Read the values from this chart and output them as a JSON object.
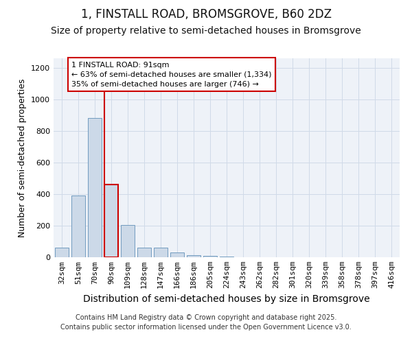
{
  "title1": "1, FINSTALL ROAD, BROMSGROVE, B60 2DZ",
  "title2": "Size of property relative to semi-detached houses in Bromsgrove",
  "xlabel": "Distribution of semi-detached houses by size in Bromsgrove",
  "ylabel": "Number of semi-detached properties",
  "categories": [
    "32sqm",
    "51sqm",
    "70sqm",
    "90sqm",
    "109sqm",
    "128sqm",
    "147sqm",
    "166sqm",
    "186sqm",
    "205sqm",
    "224sqm",
    "243sqm",
    "262sqm",
    "282sqm",
    "301sqm",
    "320sqm",
    "339sqm",
    "358sqm",
    "378sqm",
    "397sqm",
    "416sqm"
  ],
  "values": [
    60,
    390,
    880,
    460,
    205,
    62,
    62,
    30,
    15,
    8,
    3,
    1,
    0,
    0,
    0,
    0,
    0,
    0,
    0,
    0,
    0
  ],
  "bar_color": "#ccd9e8",
  "bar_edge_color": "#6090b8",
  "highlight_index": 3,
  "highlight_color": "#cc0000",
  "annotation_line1": "1 FINSTALL ROAD: 91sqm",
  "annotation_line2": "← 63% of semi-detached houses are smaller (1,334)",
  "annotation_line3": "35% of semi-detached houses are larger (746) →",
  "annotation_box_color": "#ffffff",
  "annotation_box_edge": "#cc0000",
  "ylim": [
    0,
    1260
  ],
  "yticks": [
    0,
    200,
    400,
    600,
    800,
    1000,
    1200
  ],
  "grid_color": "#d0dae8",
  "background_color": "#ffffff",
  "plot_bg_color": "#eef2f8",
  "footer_text": "Contains HM Land Registry data © Crown copyright and database right 2025.\nContains public sector information licensed under the Open Government Licence v3.0.",
  "title1_fontsize": 12,
  "title2_fontsize": 10,
  "xlabel_fontsize": 10,
  "ylabel_fontsize": 9,
  "tick_fontsize": 8,
  "annotation_fontsize": 8
}
